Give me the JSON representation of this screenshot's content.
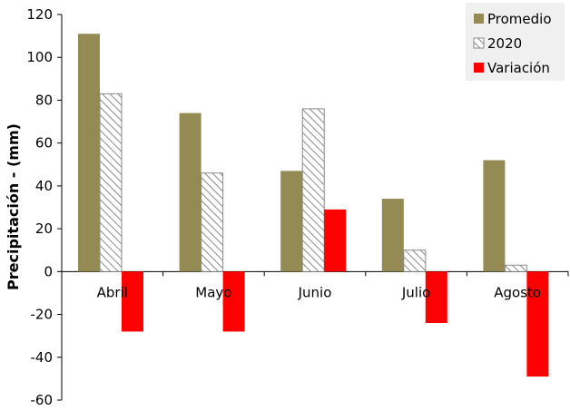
{
  "chart_data": {
    "type": "bar",
    "categories": [
      "Abril",
      "Mayo",
      "Junio",
      "Julio",
      "Agosto"
    ],
    "series": [
      {
        "name": "Promedio",
        "values": [
          111,
          74,
          47,
          34,
          52
        ],
        "color": "#948a54",
        "pattern": "solid"
      },
      {
        "name": "2020",
        "values": [
          83,
          46,
          76,
          10,
          3
        ],
        "color": "#ffffff",
        "pattern": "diagonal-hatch"
      },
      {
        "name": "Variación",
        "values": [
          -28,
          -28,
          29,
          -24,
          -49
        ],
        "color": "#ff0000",
        "pattern": "solid"
      }
    ],
    "ylabel": "Precipitación  - (mm)",
    "xlabel": "",
    "ylim": [
      -60,
      120
    ],
    "yticks": [
      -60,
      -40,
      -20,
      0,
      20,
      40,
      60,
      80,
      100,
      120
    ],
    "grid": false,
    "legend_position": "top-right"
  }
}
